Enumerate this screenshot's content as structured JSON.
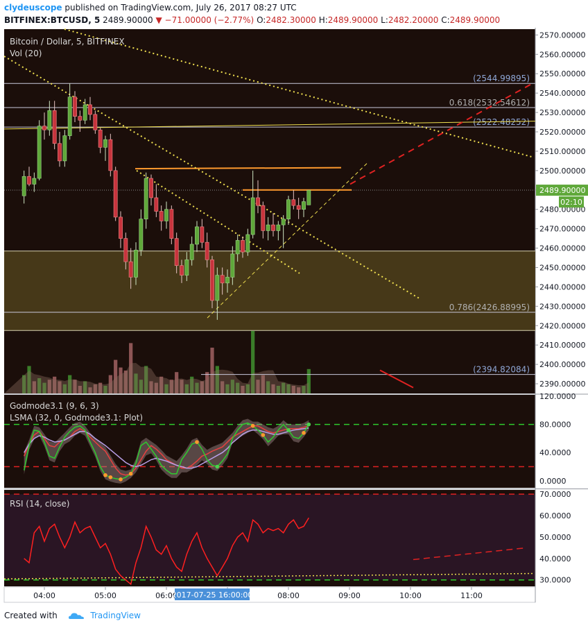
{
  "header": {
    "author": "clydeuscope",
    "published_text": "published on TradingView.com, July 26, 2017 08:27 UTC",
    "symbol": "BITFINEX:BTCUSD, 5",
    "last": "2489.90000",
    "change": "▼ −71.00000 (−2.77%)",
    "o_label": "O:",
    "o_value": "2482.30000",
    "h_label": "H:",
    "h_value": "2489.90000",
    "l_label": "L:",
    "l_value": "2482.20000",
    "c_label": "C:",
    "c_value": "2489.90000"
  },
  "legend": {
    "main": "Bitcoin / Dollar, 5, BITFINEX",
    "vol": "Vol (20)",
    "god1": "Godmode3.1 (9, 6, 3)",
    "god2": "LSMA (32, 0, Godmode3.1: Plot)",
    "rsi": "RSI (14, close)"
  },
  "price_badge": "2489.90000",
  "countdown_badge": "02:10",
  "hover_time": "2017-07-25 16:00:00",
  "colors": {
    "bg": "#1b0e0a",
    "up": "#5fa83a",
    "down": "#c8343d",
    "axis_text": "#131722",
    "zone": "#4e401b",
    "yellow": "#f0e050",
    "orange": "#ff9a2e",
    "red": "#e02222",
    "rsi_bg": "#2a1524",
    "green_dash": "#2ecc2e"
  },
  "footer": {
    "created_with": "Created with",
    "brand": "TradingView"
  },
  "chart_data": [
    {
      "type": "candlestick",
      "title": "Bitcoin / Dollar, 5, BITFINEX",
      "x_ticks": [
        "04:00",
        "05:00",
        "06:00",
        "07:00",
        "08:00",
        "09:00",
        "10:00",
        "11:00"
      ],
      "ylim": [
        2385,
        2573
      ],
      "y_ticks": [
        2390,
        2400,
        2410,
        2420,
        2430,
        2440,
        2450,
        2460,
        2470,
        2480,
        2490,
        2500,
        2510,
        2520,
        2530,
        2540,
        2550,
        2560,
        2570
      ],
      "candles": [
        {
          "t": "03:40",
          "o": 2487,
          "h": 2500,
          "l": 2483,
          "c": 2497
        },
        {
          "t": "03:45",
          "o": 2497,
          "h": 2502,
          "l": 2492,
          "c": 2493
        },
        {
          "t": "03:50",
          "o": 2493,
          "h": 2499,
          "l": 2489,
          "c": 2496
        },
        {
          "t": "03:55",
          "o": 2496,
          "h": 2526,
          "l": 2495,
          "c": 2523
        },
        {
          "t": "04:00",
          "o": 2523,
          "h": 2530,
          "l": 2516,
          "c": 2521
        },
        {
          "t": "04:05",
          "o": 2521,
          "h": 2536,
          "l": 2518,
          "c": 2531
        },
        {
          "t": "04:10",
          "o": 2531,
          "h": 2536,
          "l": 2511,
          "c": 2514
        },
        {
          "t": "04:15",
          "o": 2514,
          "h": 2520,
          "l": 2502,
          "c": 2505
        },
        {
          "t": "04:20",
          "o": 2505,
          "h": 2521,
          "l": 2502,
          "c": 2518
        },
        {
          "t": "04:25",
          "o": 2518,
          "h": 2545,
          "l": 2516,
          "c": 2538
        },
        {
          "t": "04:30",
          "o": 2538,
          "h": 2541,
          "l": 2525,
          "c": 2528
        },
        {
          "t": "04:35",
          "o": 2528,
          "h": 2531,
          "l": 2520,
          "c": 2526
        },
        {
          "t": "04:40",
          "o": 2526,
          "h": 2537,
          "l": 2524,
          "c": 2534
        },
        {
          "t": "04:45",
          "o": 2534,
          "h": 2538,
          "l": 2526,
          "c": 2529
        },
        {
          "t": "04:50",
          "o": 2529,
          "h": 2531,
          "l": 2519,
          "c": 2521
        },
        {
          "t": "04:55",
          "o": 2521,
          "h": 2522,
          "l": 2509,
          "c": 2512
        },
        {
          "t": "05:00",
          "o": 2512,
          "h": 2518,
          "l": 2505,
          "c": 2516
        },
        {
          "t": "05:05",
          "o": 2516,
          "h": 2519,
          "l": 2497,
          "c": 2500
        },
        {
          "t": "05:10",
          "o": 2500,
          "h": 2502,
          "l": 2474,
          "c": 2476
        },
        {
          "t": "05:15",
          "o": 2476,
          "h": 2479,
          "l": 2460,
          "c": 2465
        },
        {
          "t": "05:20",
          "o": 2465,
          "h": 2468,
          "l": 2449,
          "c": 2453
        },
        {
          "t": "05:25",
          "o": 2453,
          "h": 2460,
          "l": 2439,
          "c": 2445
        },
        {
          "t": "05:30",
          "o": 2445,
          "h": 2463,
          "l": 2441,
          "c": 2459
        },
        {
          "t": "05:35",
          "o": 2459,
          "h": 2480,
          "l": 2456,
          "c": 2475
        },
        {
          "t": "05:40",
          "o": 2475,
          "h": 2499,
          "l": 2470,
          "c": 2496
        },
        {
          "t": "05:45",
          "o": 2496,
          "h": 2498,
          "l": 2482,
          "c": 2486
        },
        {
          "t": "05:50",
          "o": 2486,
          "h": 2493,
          "l": 2476,
          "c": 2479
        },
        {
          "t": "05:55",
          "o": 2479,
          "h": 2482,
          "l": 2469,
          "c": 2474
        },
        {
          "t": "06:00",
          "o": 2474,
          "h": 2484,
          "l": 2470,
          "c": 2480
        },
        {
          "t": "06:05",
          "o": 2480,
          "h": 2482,
          "l": 2462,
          "c": 2465
        },
        {
          "t": "06:10",
          "o": 2465,
          "h": 2468,
          "l": 2447,
          "c": 2451
        },
        {
          "t": "06:15",
          "o": 2451,
          "h": 2454,
          "l": 2442,
          "c": 2446
        },
        {
          "t": "06:20",
          "o": 2446,
          "h": 2458,
          "l": 2443,
          "c": 2454
        },
        {
          "t": "06:25",
          "o": 2454,
          "h": 2466,
          "l": 2451,
          "c": 2462
        },
        {
          "t": "06:30",
          "o": 2462,
          "h": 2474,
          "l": 2458,
          "c": 2471
        },
        {
          "t": "06:35",
          "o": 2471,
          "h": 2475,
          "l": 2460,
          "c": 2463
        },
        {
          "t": "06:40",
          "o": 2463,
          "h": 2468,
          "l": 2450,
          "c": 2454
        },
        {
          "t": "06:45",
          "o": 2454,
          "h": 2456,
          "l": 2429,
          "c": 2433
        },
        {
          "t": "06:50",
          "o": 2433,
          "h": 2450,
          "l": 2423,
          "c": 2446
        },
        {
          "t": "06:55",
          "o": 2446,
          "h": 2450,
          "l": 2436,
          "c": 2442
        },
        {
          "t": "07:00",
          "o": 2442,
          "h": 2449,
          "l": 2437,
          "c": 2445
        },
        {
          "t": "07:05",
          "o": 2445,
          "h": 2461,
          "l": 2441,
          "c": 2457
        },
        {
          "t": "07:10",
          "o": 2457,
          "h": 2467,
          "l": 2453,
          "c": 2464
        },
        {
          "t": "07:15",
          "o": 2464,
          "h": 2466,
          "l": 2455,
          "c": 2458
        },
        {
          "t": "07:20",
          "o": 2458,
          "h": 2470,
          "l": 2456,
          "c": 2467
        },
        {
          "t": "07:25",
          "o": 2467,
          "h": 2500,
          "l": 2465,
          "c": 2486
        },
        {
          "t": "07:30",
          "o": 2486,
          "h": 2495,
          "l": 2478,
          "c": 2482
        },
        {
          "t": "07:35",
          "o": 2482,
          "h": 2484,
          "l": 2465,
          "c": 2469
        },
        {
          "t": "07:40",
          "o": 2469,
          "h": 2476,
          "l": 2464,
          "c": 2472
        },
        {
          "t": "07:45",
          "o": 2472,
          "h": 2478,
          "l": 2466,
          "c": 2469
        },
        {
          "t": "07:50",
          "o": 2469,
          "h": 2474,
          "l": 2464,
          "c": 2472
        },
        {
          "t": "07:55",
          "o": 2472,
          "h": 2477,
          "l": 2460,
          "c": 2475
        },
        {
          "t": "08:00",
          "o": 2475,
          "h": 2487,
          "l": 2472,
          "c": 2485
        },
        {
          "t": "08:05",
          "o": 2485,
          "h": 2490,
          "l": 2480,
          "c": 2482
        },
        {
          "t": "08:10",
          "o": 2482,
          "h": 2486,
          "l": 2475,
          "c": 2480
        },
        {
          "t": "08:15",
          "o": 2480,
          "h": 2486,
          "l": 2476,
          "c": 2484
        },
        {
          "t": "08:20",
          "o": 2482.3,
          "h": 2489.9,
          "l": 2482.2,
          "c": 2489.9
        }
      ],
      "volume": [
        {
          "v": 12,
          "up": true
        },
        {
          "v": 18,
          "up": true
        },
        {
          "v": 8,
          "up": false
        },
        {
          "v": 10,
          "up": true
        },
        {
          "v": 7,
          "up": true
        },
        {
          "v": 9,
          "up": false
        },
        {
          "v": 11,
          "up": false
        },
        {
          "v": 8,
          "up": false
        },
        {
          "v": 6,
          "up": true
        },
        {
          "v": 12,
          "up": true
        },
        {
          "v": 9,
          "up": false
        },
        {
          "v": 5,
          "up": false
        },
        {
          "v": 8,
          "up": true
        },
        {
          "v": 4,
          "up": false
        },
        {
          "v": 6,
          "up": false
        },
        {
          "v": 7,
          "up": false
        },
        {
          "v": 5,
          "up": true
        },
        {
          "v": 12,
          "up": false
        },
        {
          "v": 22,
          "up": false
        },
        {
          "v": 17,
          "up": false
        },
        {
          "v": 15,
          "up": false
        },
        {
          "v": 33,
          "up": false
        },
        {
          "v": 13,
          "up": true
        },
        {
          "v": 9,
          "up": true
        },
        {
          "v": 18,
          "up": true
        },
        {
          "v": 8,
          "up": false
        },
        {
          "v": 7,
          "up": false
        },
        {
          "v": 11,
          "up": false
        },
        {
          "v": 6,
          "up": true
        },
        {
          "v": 9,
          "up": false
        },
        {
          "v": 14,
          "up": false
        },
        {
          "v": 9,
          "up": false
        },
        {
          "v": 6,
          "up": true
        },
        {
          "v": 11,
          "up": true
        },
        {
          "v": 7,
          "up": true
        },
        {
          "v": 8,
          "up": false
        },
        {
          "v": 14,
          "up": false
        },
        {
          "v": 30,
          "up": false
        },
        {
          "v": 18,
          "up": true
        },
        {
          "v": 8,
          "up": false
        },
        {
          "v": 6,
          "up": true
        },
        {
          "v": 9,
          "up": true
        },
        {
          "v": 7,
          "up": true
        },
        {
          "v": 5,
          "up": false
        },
        {
          "v": 6,
          "up": true
        },
        {
          "v": 41,
          "up": true
        },
        {
          "v": 9,
          "up": false
        },
        {
          "v": 12,
          "up": false
        },
        {
          "v": 8,
          "up": true
        },
        {
          "v": 6,
          "up": false
        },
        {
          "v": 5,
          "up": true
        },
        {
          "v": 7,
          "up": true
        },
        {
          "v": 6,
          "up": true
        },
        {
          "v": 5,
          "up": false
        },
        {
          "v": 4,
          "up": false
        },
        {
          "v": 5,
          "up": true
        },
        {
          "v": 16,
          "up": true
        }
      ],
      "levels": [
        {
          "label": "(2544.99895)",
          "value": 2544.99895
        },
        {
          "label": "0.618(2532.54612)",
          "value": 2532.54612
        },
        {
          "label": "(2522.48252)",
          "value": 2522.48252
        },
        {
          "label": "0.786(2426.88995)",
          "value": 2426.88995
        },
        {
          "label": "(2394.82084)",
          "value": 2394.82084
        }
      ],
      "zone": {
        "from": 2417.5,
        "to": 2458.5
      },
      "last_price": 2489.9
    },
    {
      "type": "line",
      "title": "Godmode3.1 (9, 6, 3)",
      "ylim": [
        -10,
        122
      ],
      "y_ticks": [
        0,
        40,
        80,
        120
      ],
      "y_tick_labels": [
        "0.0000",
        "40.0000",
        "80.0000",
        "120.0000"
      ],
      "bands": [
        80,
        20
      ],
      "series": [
        {
          "values": [
            35,
            52,
            65,
            70,
            60,
            50,
            48,
            55,
            58,
            62,
            70,
            74,
            70,
            62,
            55,
            48,
            42,
            30,
            18,
            10,
            8,
            10,
            18,
            30,
            42,
            50,
            45,
            38,
            30,
            26,
            22,
            18,
            18,
            22,
            28,
            35,
            38,
            42,
            45,
            48,
            55,
            62,
            66,
            70,
            74,
            78,
            78,
            74,
            70,
            68,
            70,
            72,
            74,
            74,
            74,
            76,
            78
          ]
        },
        {
          "values": [
            15,
            50,
            72,
            70,
            55,
            35,
            32,
            48,
            62,
            70,
            76,
            78,
            72,
            55,
            40,
            20,
            8,
            5,
            3,
            2,
            5,
            10,
            25,
            50,
            55,
            45,
            35,
            22,
            15,
            10,
            10,
            30,
            40,
            52,
            55,
            45,
            30,
            22,
            20,
            28,
            38,
            60,
            72,
            80,
            82,
            78,
            72,
            65,
            55,
            62,
            72,
            80,
            72,
            62,
            60,
            68,
            80
          ]
        },
        {
          "values": [
            40,
            52,
            60,
            64,
            62,
            58,
            55,
            56,
            58,
            62,
            66,
            70,
            70,
            66,
            60,
            55,
            50,
            44,
            38,
            32,
            26,
            22,
            20,
            22,
            26,
            30,
            32,
            30,
            28,
            25,
            22,
            20,
            18,
            18,
            20,
            24,
            28,
            32,
            36,
            40,
            46,
            54,
            60,
            66,
            70,
            72,
            72,
            70,
            68,
            66,
            66,
            68,
            70,
            72,
            73,
            74,
            75
          ]
        }
      ]
    },
    {
      "type": "line",
      "title": "RSI (14, close)",
      "ylim": [
        27,
        72
      ],
      "y_ticks": [
        30,
        40,
        50,
        60,
        70
      ],
      "y_tick_labels": [
        "30.0000",
        "40.0000",
        "50.0000",
        "60.0000",
        "70.0000"
      ],
      "bands": [
        70,
        30
      ],
      "series": [
        {
          "values": [
            40,
            38,
            52,
            55,
            48,
            54,
            56,
            50,
            45,
            50,
            57,
            52,
            54,
            55,
            50,
            45,
            47,
            42,
            35,
            32,
            30,
            28,
            38,
            45,
            55,
            50,
            44,
            42,
            46,
            40,
            36,
            34,
            42,
            48,
            52,
            45,
            40,
            36,
            32,
            36,
            40,
            46,
            50,
            52,
            48,
            58,
            56,
            52,
            54,
            53,
            54,
            52,
            56,
            58,
            54,
            55,
            59
          ]
        }
      ]
    }
  ]
}
